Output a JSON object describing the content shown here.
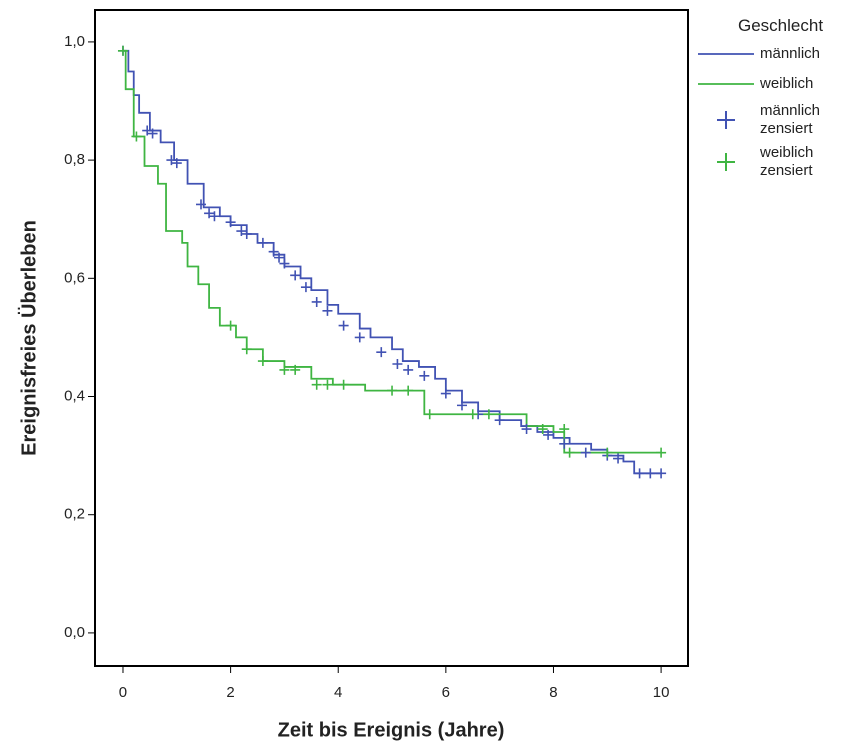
{
  "chart_data": {
    "type": "step",
    "x_label": "Zeit bis Ereignis (Jahre)",
    "y_label": "Ereignisfreies Überleben",
    "legend_title": "Geschlecht",
    "legend": "right",
    "xlim": [
      -0.52,
      10.5
    ],
    "ylim": [
      -0.056,
      1.054
    ],
    "xticks": [
      0,
      2,
      4,
      6,
      8,
      10
    ],
    "yticks": [
      {
        "value": 0,
        "label": "0,0"
      },
      {
        "value": 0.2,
        "label": "0,2"
      },
      {
        "value": 0.4,
        "label": "0,4"
      },
      {
        "value": 0.6,
        "label": "0,6"
      },
      {
        "value": 0.8,
        "label": "0,8"
      },
      {
        "value": 1,
        "label": "1,0"
      }
    ],
    "series": [
      {
        "name": "männlich",
        "color": "#4152b3",
        "marker": "line",
        "x": [
          0,
          0.1,
          0.2,
          0.3,
          0.5,
          0.7,
          0.95,
          1.2,
          1.5,
          1.8,
          2.0,
          2.3,
          2.5,
          2.8,
          3.0,
          3.3,
          3.5,
          3.8,
          4.0,
          4.4,
          4.6,
          5.0,
          5.2,
          5.5,
          5.8,
          6.0,
          6.3,
          6.6,
          7.0,
          7.4,
          7.7,
          8.0,
          8.3,
          8.7,
          9.0,
          9.3,
          9.5,
          10
        ],
        "values": [
          0.985,
          0.95,
          0.91,
          0.88,
          0.85,
          0.83,
          0.8,
          0.76,
          0.72,
          0.705,
          0.69,
          0.675,
          0.66,
          0.64,
          0.62,
          0.6,
          0.58,
          0.555,
          0.54,
          0.515,
          0.5,
          0.48,
          0.46,
          0.45,
          0.43,
          0.41,
          0.39,
          0.375,
          0.36,
          0.35,
          0.34,
          0.33,
          0.32,
          0.31,
          0.3,
          0.29,
          0.27,
          0.27
        ]
      },
      {
        "name": "weiblich",
        "color": "#3fb542",
        "marker": "line",
        "x": [
          0,
          0.05,
          0.2,
          0.4,
          0.65,
          0.8,
          1.1,
          1.2,
          1.4,
          1.6,
          1.8,
          2.1,
          2.3,
          2.6,
          3.0,
          3.5,
          3.9,
          4.5,
          5.6,
          7.5,
          8.0,
          8.2,
          10
        ],
        "values": [
          0.985,
          0.92,
          0.84,
          0.79,
          0.76,
          0.68,
          0.66,
          0.62,
          0.59,
          0.55,
          0.52,
          0.5,
          0.48,
          0.46,
          0.45,
          0.43,
          0.42,
          0.41,
          0.37,
          0.35,
          0.34,
          0.305,
          0.305
        ]
      },
      {
        "name": "männlich zensiert",
        "color": "#4152b3",
        "marker": "+",
        "x": [
          0,
          0.45,
          0.55,
          0.9,
          1.0,
          1.45,
          1.6,
          1.7,
          2.0,
          2.2,
          2.3,
          2.6,
          2.8,
          2.9,
          3.0,
          3.2,
          3.4,
          3.6,
          3.8,
          4.1,
          4.4,
          4.8,
          5.1,
          5.3,
          5.6,
          6.0,
          6.3,
          6.6,
          7.0,
          7.5,
          7.9,
          8.2,
          8.6,
          9.0,
          9.2,
          9.6,
          9.8,
          10
        ],
        "values": [
          0.985,
          0.85,
          0.845,
          0.8,
          0.795,
          0.725,
          0.71,
          0.705,
          0.695,
          0.68,
          0.675,
          0.66,
          0.645,
          0.635,
          0.625,
          0.605,
          0.585,
          0.56,
          0.545,
          0.52,
          0.5,
          0.475,
          0.455,
          0.445,
          0.435,
          0.405,
          0.385,
          0.37,
          0.36,
          0.345,
          0.335,
          0.32,
          0.305,
          0.3,
          0.295,
          0.27,
          0.27,
          0.27
        ]
      },
      {
        "name": "weiblich zensiert",
        "color": "#3fb542",
        "marker": "+",
        "x": [
          0,
          0.25,
          2.0,
          2.3,
          2.6,
          3.0,
          3.2,
          3.6,
          3.8,
          4.1,
          5.0,
          5.3,
          5.7,
          6.5,
          6.8,
          7.8,
          8.2,
          8.3,
          9,
          10
        ],
        "values": [
          0.985,
          0.84,
          0.52,
          0.48,
          0.46,
          0.445,
          0.445,
          0.42,
          0.42,
          0.42,
          0.41,
          0.41,
          0.37,
          0.37,
          0.37,
          0.345,
          0.345,
          0.305,
          0.305,
          0.305
        ]
      }
    ]
  }
}
